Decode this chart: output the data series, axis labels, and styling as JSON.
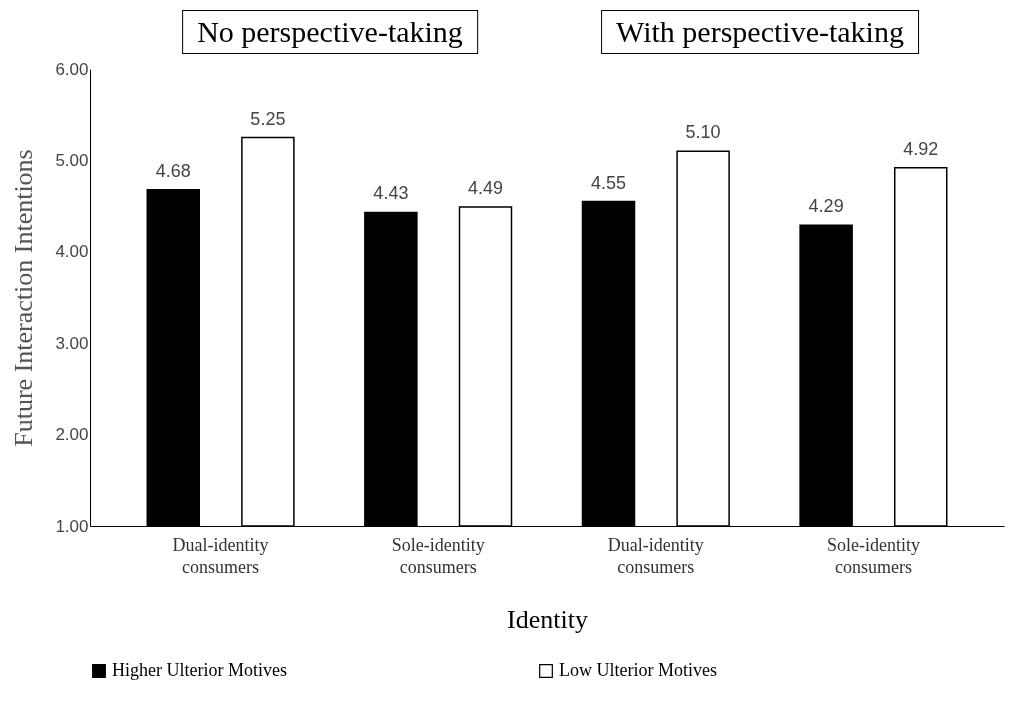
{
  "chart_data": {
    "type": "bar",
    "categories": [
      "Dual-identity consumers",
      "Sole-identity consumers",
      "Dual-identity consumers",
      "Sole-identity consumers"
    ],
    "series": [
      {
        "name": "Higher Ulterior Motives",
        "color": "#000000",
        "values": [
          4.68,
          4.43,
          4.55,
          4.29
        ],
        "value_labels": [
          "4.68",
          "4.43",
          "4.55",
          "4.29"
        ]
      },
      {
        "name": "Low Ulterior Motives",
        "color": "#ffffff",
        "values": [
          5.25,
          4.49,
          5.1,
          4.92
        ],
        "value_labels": [
          "5.25",
          "4.49",
          "5.10",
          "4.92"
        ]
      }
    ],
    "xlabel": "Identity",
    "ylabel": "Future Interaction Intentions",
    "ylim": [
      1,
      6
    ],
    "yticks": [
      {
        "value": 1,
        "label": "1.00"
      },
      {
        "value": 2,
        "label": "2.00"
      },
      {
        "value": 3,
        "label": "3.00"
      },
      {
        "value": 4,
        "label": "4.00"
      },
      {
        "value": 5,
        "label": "5.00"
      },
      {
        "value": 6,
        "label": "6.00"
      }
    ],
    "annotations": [
      "No perspective-taking",
      "With perspective-taking"
    ],
    "grid": false,
    "legend": "bottom"
  }
}
